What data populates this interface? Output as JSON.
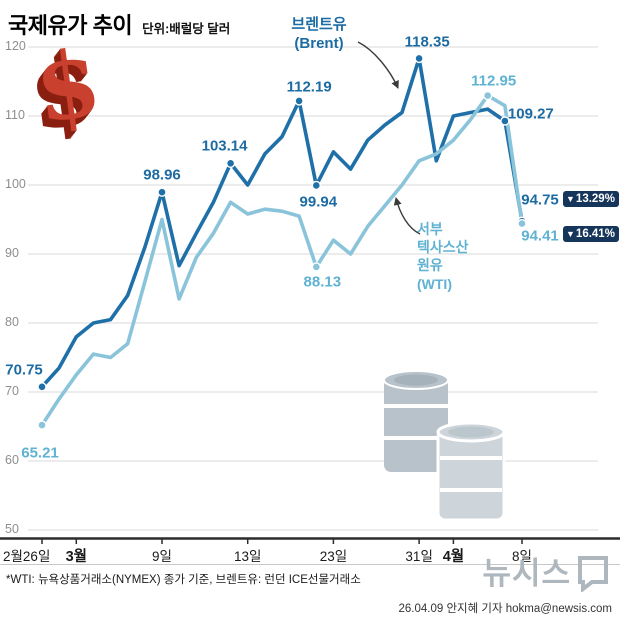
{
  "header": {
    "title": "국제유가 추이",
    "unit": "단위:배럴당 달러"
  },
  "legend": {
    "brent": "브렌트유\n(Brent)",
    "wti": "서부\n텍사스산\n원유\n(WTI)"
  },
  "badges": {
    "arrow": "▼",
    "brent": "13.29%",
    "wti": "16.41%",
    "bg_color": "#16355a"
  },
  "chart_data": {
    "type": "line",
    "title": "국제유가 추이",
    "unit_label": "단위:배럴당 달러",
    "ylim": [
      50,
      120
    ],
    "grid": true,
    "y_ticks": [
      50,
      60,
      70,
      80,
      90,
      100,
      110,
      120
    ],
    "x_ticks": [
      {
        "label": "2월26일",
        "idx": 0,
        "bold": false,
        "align": "left"
      },
      {
        "label": "3월",
        "idx": 2,
        "bold": true
      },
      {
        "label": "9일",
        "idx": 7,
        "bold": false
      },
      {
        "label": "13일",
        "idx": 12,
        "bold": false
      },
      {
        "label": "23일",
        "idx": 17,
        "bold": false
      },
      {
        "label": "31일",
        "idx": 22,
        "bold": false
      },
      {
        "label": "4월",
        "idx": 24,
        "bold": true
      },
      {
        "label": "8일",
        "idx": 28,
        "bold": false
      }
    ],
    "series": [
      {
        "name": "브렌트유 (Brent)",
        "color": "#1f6fa8",
        "values": [
          70.75,
          73.5,
          78,
          80,
          80.5,
          84,
          91,
          98.96,
          88.3,
          93,
          97.5,
          103.14,
          100,
          104.5,
          107,
          112.19,
          99.94,
          104.8,
          102.3,
          106.5,
          108.7,
          110.5,
          118.35,
          103.5,
          110,
          110.5,
          111,
          109.27,
          94.75
        ],
        "change_pct": "-13.29%",
        "annotations": [
          {
            "idx": 0,
            "label": "70.75",
            "dx": -18,
            "dy": -17
          },
          {
            "idx": 7,
            "label": "98.96",
            "dx": 0,
            "dy": -17
          },
          {
            "idx": 11,
            "label": "103.14",
            "dx": -6,
            "dy": -17
          },
          {
            "idx": 15,
            "label": "112.19",
            "dx": 10,
            "dy": -14
          },
          {
            "idx": 16,
            "label": "99.94",
            "dx": 2,
            "dy": 17
          },
          {
            "idx": 22,
            "label": "118.35",
            "dx": 8,
            "dy": -16
          },
          {
            "idx": 27,
            "label": "109.27",
            "dx": 26,
            "dy": -7
          },
          {
            "idx": 28,
            "label": "94.75",
            "dx": 18,
            "dy": -21
          }
        ]
      },
      {
        "name": "서부 텍사스산 원유 (WTI)",
        "color": "#8ac4da",
        "values": [
          65.21,
          69,
          72.5,
          75.5,
          75,
          77,
          86,
          95,
          83.5,
          89.5,
          93,
          97.5,
          95.8,
          96.5,
          96.2,
          95.5,
          88.13,
          92,
          90,
          94,
          97,
          100,
          103.5,
          104.5,
          106.5,
          109.5,
          112.95,
          111.5,
          94.41
        ],
        "change_pct": "-16.41%",
        "annotations": [
          {
            "idx": 0,
            "label": "65.21",
            "dx": -2,
            "dy": 28
          },
          {
            "idx": 16,
            "label": "88.13",
            "dx": 6,
            "dy": 15
          },
          {
            "idx": 26,
            "label": "112.95",
            "dx": 6,
            "dy": -15
          },
          {
            "idx": 28,
            "label": "94.41",
            "dx": 18,
            "dy": 12
          }
        ]
      }
    ]
  },
  "footer": {
    "note": "*WTI: 뉴욕상품거래소(NYMEX) 종가 기준, 브렌트유: 런던 ICE선물거래소",
    "logo_text": "뉴시스",
    "byline": "26.04.09 안지혜 기자 hokma@newsis.com"
  }
}
